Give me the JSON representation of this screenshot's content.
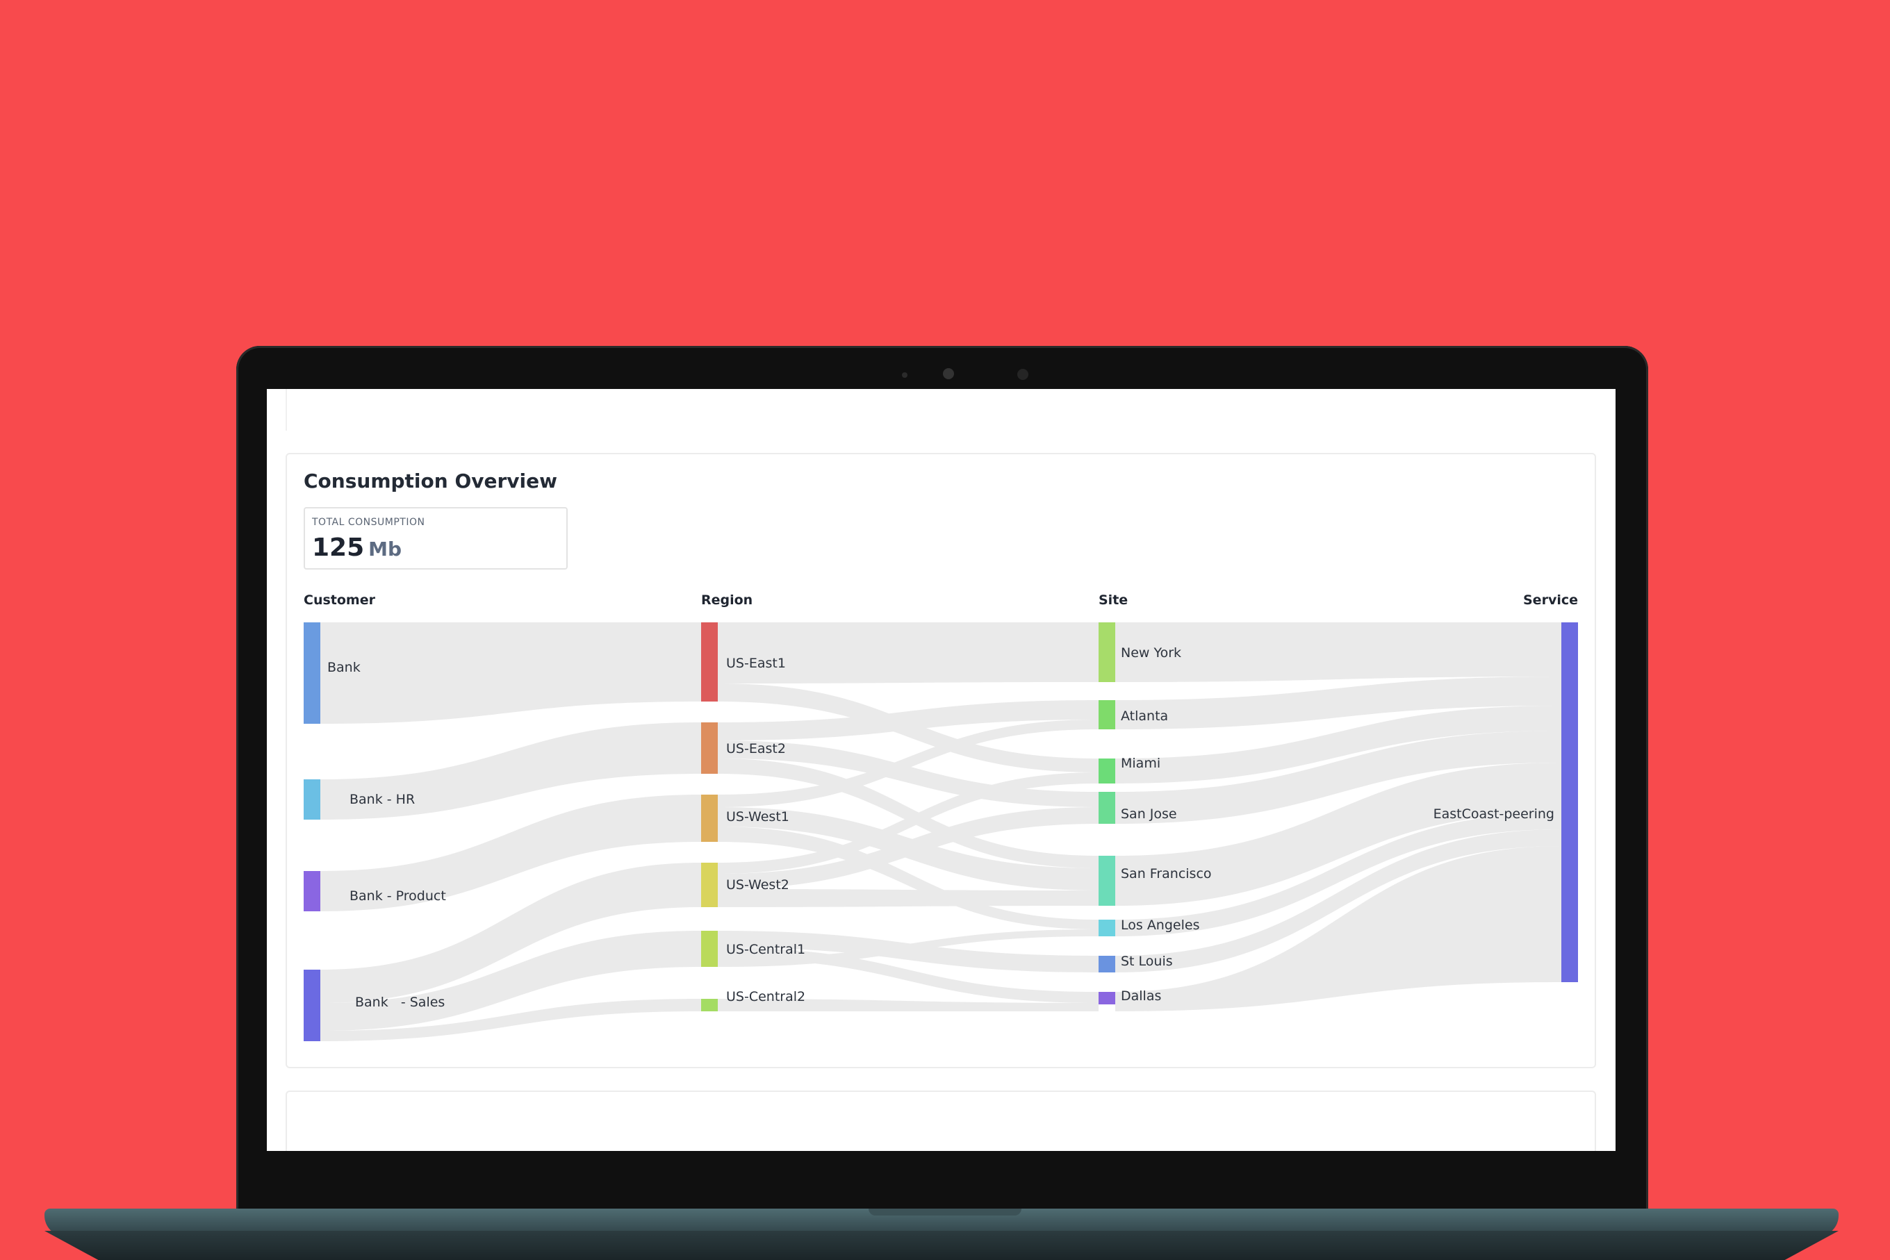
{
  "header": {
    "title": "Consumption Overview"
  },
  "metric": {
    "label": "TOTAL CONSUMPTION",
    "value": "125",
    "unit": "Mb"
  },
  "columns": [
    "Customer",
    "Region",
    "Site",
    "Service"
  ],
  "nodes": {
    "customer": [
      {
        "label": "Bank",
        "color": "#6a9be0"
      },
      {
        "label": "Bank - HR",
        "color": "#6bbfe4"
      },
      {
        "label": "Bank - Product",
        "color": "#8a66e2"
      },
      {
        "label": "Bank   - Sales",
        "color": "#6b6ae2"
      }
    ],
    "region": [
      {
        "label": "US-East1",
        "color": "#dc5b5b"
      },
      {
        "label": "US-East2",
        "color": "#dd8e5e"
      },
      {
        "label": "US-West1",
        "color": "#deae5c"
      },
      {
        "label": "US-West2",
        "color": "#d9d45c"
      },
      {
        "label": "US-Central1",
        "color": "#bada5b"
      },
      {
        "label": "US-Central2",
        "color": "#a4dc63"
      }
    ],
    "site": [
      {
        "label": "New York",
        "color": "#a7dc6a"
      },
      {
        "label": "Atlanta",
        "color": "#7fdb6a"
      },
      {
        "label": "Miami",
        "color": "#6cdc78"
      },
      {
        "label": "San Jose",
        "color": "#6bdc93"
      },
      {
        "label": "San Francisco",
        "color": "#6cdcb8"
      },
      {
        "label": "Los Angeles",
        "color": "#6cd2e0"
      },
      {
        "label": "St Louis",
        "color": "#6a93e0"
      },
      {
        "label": "Dallas",
        "color": "#8a66e0"
      }
    ],
    "service": [
      {
        "label": "EastCoast-peering",
        "color": "#6b6ae0"
      }
    ]
  }
}
